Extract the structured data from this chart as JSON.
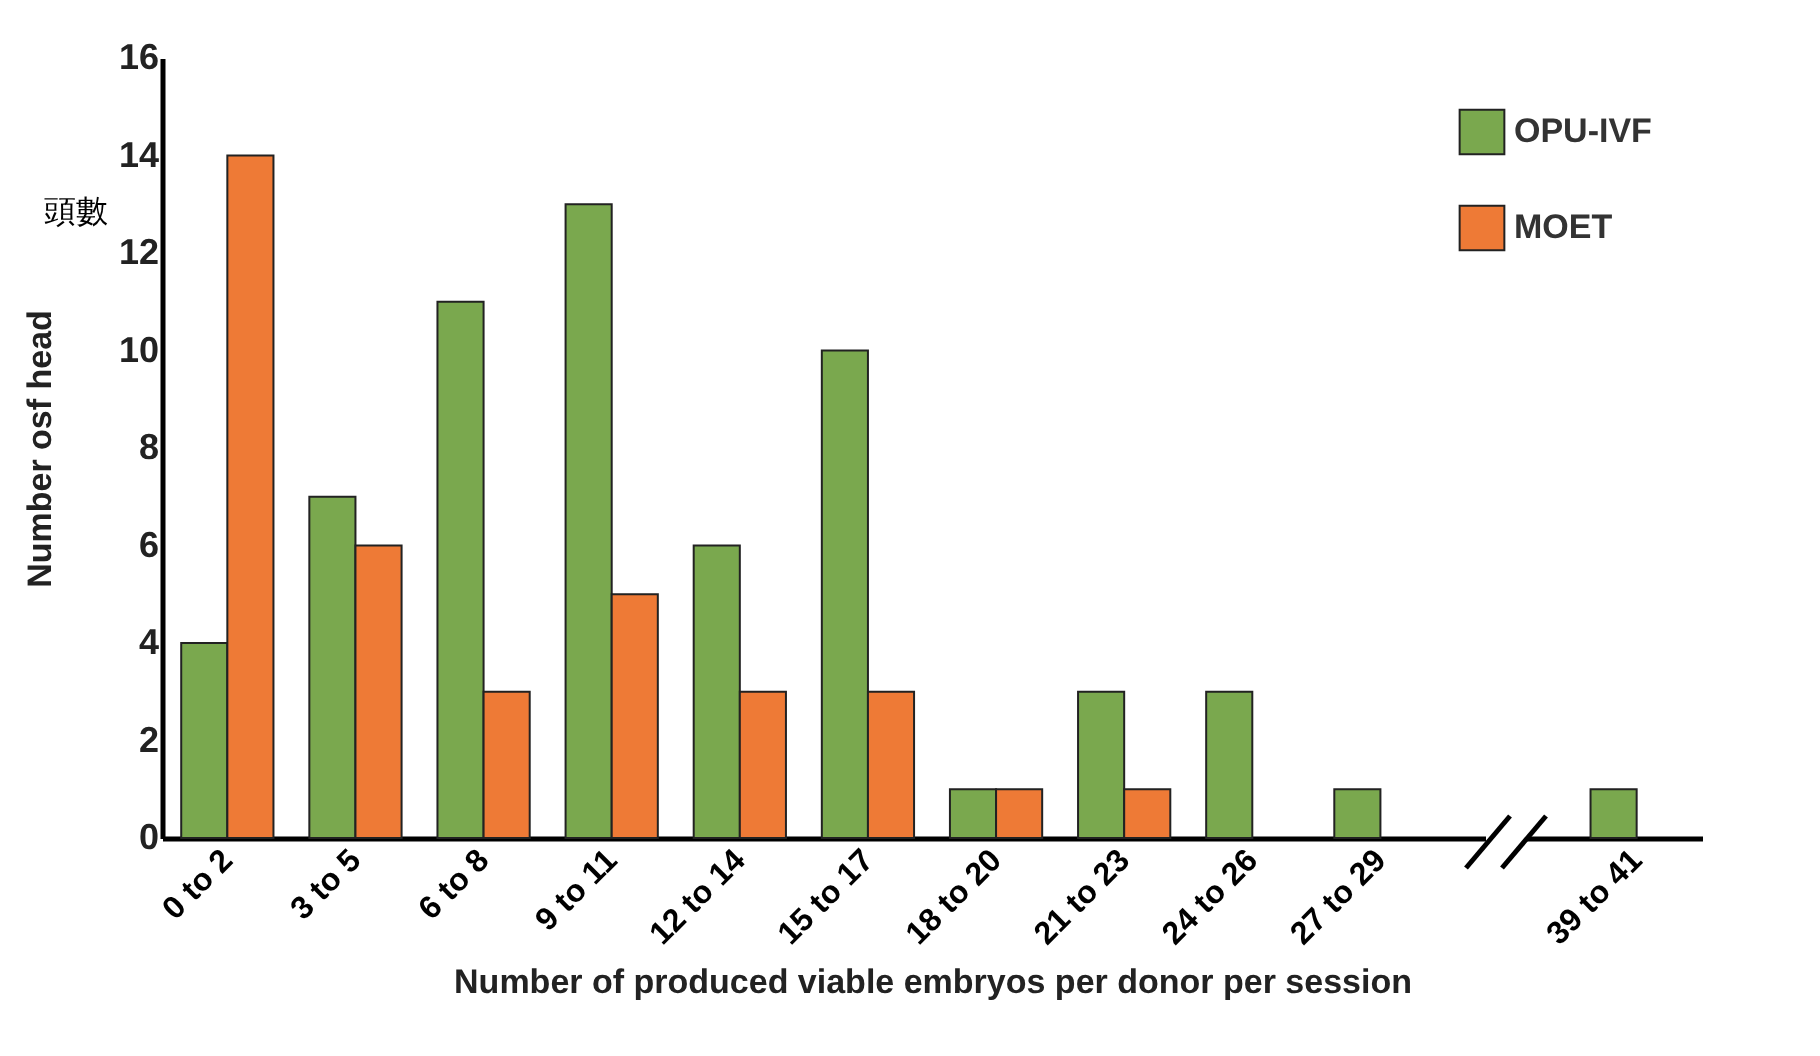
{
  "chart_data": {
    "type": "bar",
    "xlabel": "Number of produced viable embryos per donor per session",
    "ylabel": "Number osf head",
    "annotations": [
      "頭數"
    ],
    "categories": [
      "0 to 2",
      "3 to 5",
      "6 to 8",
      "9 to 11",
      "12 to 14",
      "15 to 17",
      "18 to 20",
      "21 to 23",
      "24 to 26",
      "27 to 29",
      null,
      "39 to 41"
    ],
    "series": [
      {
        "name": "OPU-IVF",
        "color": "#7aa84e",
        "values": [
          4,
          7,
          11,
          13,
          6,
          10,
          1,
          3,
          3,
          1,
          null,
          1
        ]
      },
      {
        "name": "MOET",
        "color": "#ee7a36",
        "values": [
          14,
          6,
          3,
          5,
          3,
          3,
          1,
          1,
          null,
          null,
          null,
          null
        ]
      }
    ],
    "ylim": [
      0,
      16
    ],
    "yticks": [
      0,
      2,
      4,
      6,
      8,
      10,
      12,
      14,
      16
    ],
    "legend": "top right",
    "grid": false
  }
}
